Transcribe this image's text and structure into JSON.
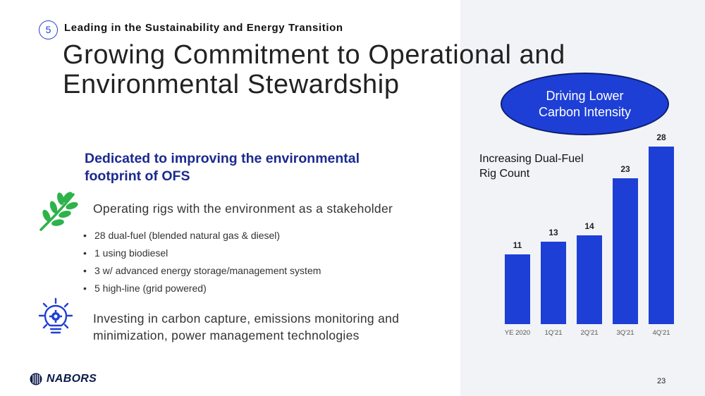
{
  "header": {
    "section_number": "5",
    "section_title": "Leading in the Sustainability and Energy Transition",
    "title_line1": "Growing Commitment to Operational and",
    "title_line2": "Environmental Stewardship"
  },
  "content": {
    "subhead_line1": "Dedicated to improving the environmental",
    "subhead_line2": "footprint of OFS",
    "point1": "Operating rigs with the environment as a stakeholder",
    "bullets": [
      "28 dual-fuel (blended natural gas & diesel)",
      "1 using biodiesel",
      "3 w/ advanced energy storage/management system",
      "5 high-line (grid powered)"
    ],
    "point2_line1": "Investing in carbon capture, emissions monitoring and",
    "point2_line2": "minimization, power management technologies"
  },
  "callout": {
    "line1": "Driving Lower",
    "line2": "Carbon Intensity"
  },
  "footer": {
    "logo_text": "NABORS",
    "page_number": "23"
  },
  "icons": {
    "leaf": "leaf-icon",
    "bulb": "lightbulb-gear-icon",
    "logo": "nabors-logo-icon"
  },
  "colors": {
    "accent": "#1e3fd6",
    "subhead": "#1b2a8f",
    "leaf": "#2db34a",
    "panel": "#f2f3f6"
  },
  "chart_data": {
    "type": "bar",
    "title_line1": "Increasing Dual-Fuel",
    "title_line2": "Rig Count",
    "categories": [
      "YE 2020",
      "1Q'21",
      "2Q'21",
      "3Q'21",
      "4Q'21"
    ],
    "values": [
      11,
      13,
      14,
      23,
      28
    ],
    "ylim": [
      0,
      28
    ],
    "grid": false,
    "legend": "none",
    "bar_color": "#1e3fd6"
  }
}
